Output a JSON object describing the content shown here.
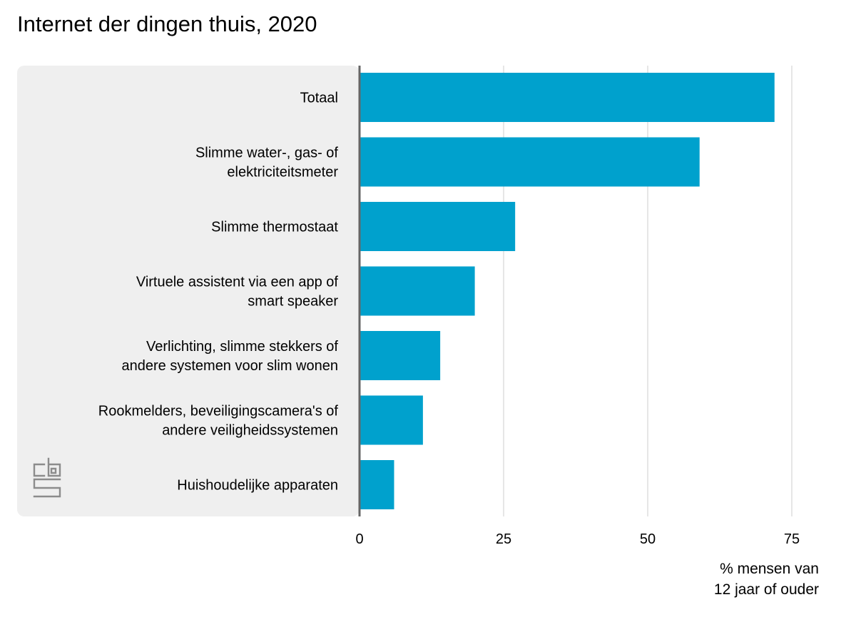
{
  "title": "Internet der dingen thuis, 2020",
  "colors": {
    "bar": "#00a1cd",
    "label_panel": "#efefef",
    "gridline": "#cccccc",
    "axis_line": "#666666",
    "logo": "#8c8c8c"
  },
  "logo": {
    "name": "cbs-logo",
    "text": "cbs"
  },
  "chart_data": {
    "type": "bar",
    "orientation": "horizontal",
    "title": "Internet der dingen thuis, 2020",
    "categories": [
      [
        "Totaal"
      ],
      [
        "Slimme water-, gas- of",
        "elektriciteitsmeter"
      ],
      [
        "Slimme thermostaat"
      ],
      [
        "Virtuele assistent via een app of",
        "smart speaker"
      ],
      [
        "Verlichting, slimme stekkers of",
        "andere systemen voor slim wonen"
      ],
      [
        "Rookmelders, beveiligingscamera's of",
        "andere veiligheidssystemen"
      ],
      [
        "Huishoudelijke apparaten"
      ]
    ],
    "values": [
      72,
      59,
      27,
      20,
      14,
      11,
      6
    ],
    "xlabel": [
      "% mensen van",
      "12 jaar of ouder"
    ],
    "ylabel": "",
    "xlim": [
      0,
      75
    ],
    "xticks": [
      0,
      25,
      50,
      75
    ],
    "grid": true,
    "legend": "none"
  }
}
